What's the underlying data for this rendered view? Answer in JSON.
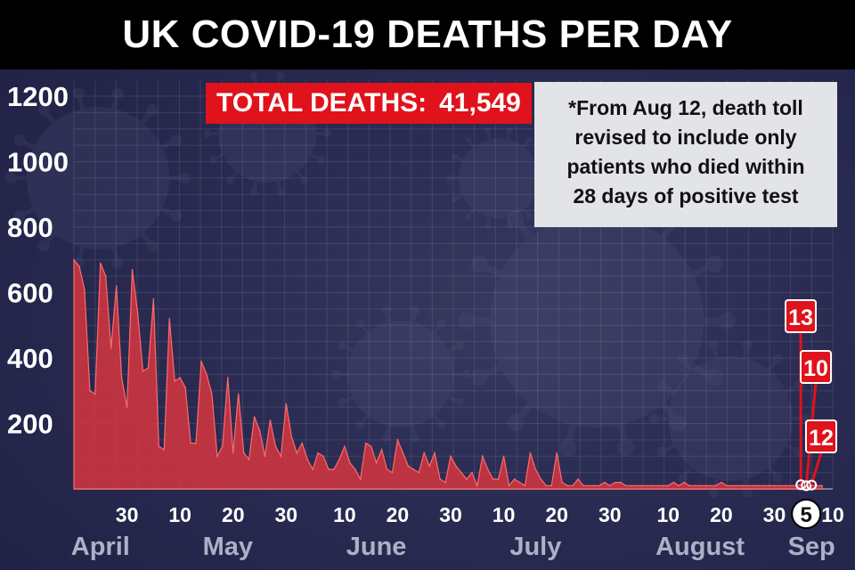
{
  "title": "UK COVID-19 DEATHS PER DAY",
  "total_label": "TOTAL DEATHS:",
  "total_value": "41,549",
  "note_lines": [
    "*From Aug 12, death toll",
    "revised to include only",
    "patients who died within",
    "28 days of positive test"
  ],
  "colors": {
    "area_fill": "#d6353f",
    "area_stroke": "#ff6b6b",
    "callout": "#e0121b",
    "background": "#2a2b52",
    "title_bar": "#000000",
    "note_box": "#e3e4e8"
  },
  "chart_data": {
    "type": "area",
    "title": "UK COVID-19 DEATHS PER DAY",
    "xlabel": "",
    "ylabel": "",
    "ylim": [
      0,
      1200
    ],
    "y_ticks": [
      200,
      400,
      600,
      800,
      1000,
      1200
    ],
    "grid": true,
    "x_start": "2020-04-20",
    "x_day_ticks": [
      {
        "date": "2020-04-30",
        "label": "30"
      },
      {
        "date": "2020-05-10",
        "label": "10"
      },
      {
        "date": "2020-05-20",
        "label": "20"
      },
      {
        "date": "2020-05-30",
        "label": "30"
      },
      {
        "date": "2020-06-10",
        "label": "10"
      },
      {
        "date": "2020-06-20",
        "label": "20"
      },
      {
        "date": "2020-06-30",
        "label": "30"
      },
      {
        "date": "2020-07-10",
        "label": "10"
      },
      {
        "date": "2020-07-20",
        "label": "20"
      },
      {
        "date": "2020-07-30",
        "label": "30"
      },
      {
        "date": "2020-08-10",
        "label": "10"
      },
      {
        "date": "2020-08-20",
        "label": "20"
      },
      {
        "date": "2020-08-30",
        "label": "30"
      },
      {
        "date": "2020-09-05",
        "label": "5",
        "highlight": true
      },
      {
        "date": "2020-09-10",
        "label": "10"
      }
    ],
    "x_month_labels": [
      {
        "date": "2020-04-25",
        "label": "April"
      },
      {
        "date": "2020-05-19",
        "label": "May"
      },
      {
        "date": "2020-06-16",
        "label": "June"
      },
      {
        "date": "2020-07-16",
        "label": "July"
      },
      {
        "date": "2020-08-16",
        "label": "August"
      },
      {
        "date": "2020-09-06",
        "label": "Sep"
      }
    ],
    "series": [
      {
        "dates": [
          "2020-04-20",
          "2020-04-21",
          "2020-04-22",
          "2020-04-23",
          "2020-04-24",
          "2020-04-25",
          "2020-04-26",
          "2020-04-27",
          "2020-04-28",
          "2020-04-29",
          "2020-04-30",
          "2020-05-01",
          "2020-05-02",
          "2020-05-03",
          "2020-05-04",
          "2020-05-05",
          "2020-05-06",
          "2020-05-07",
          "2020-05-08",
          "2020-05-09",
          "2020-05-10",
          "2020-05-11",
          "2020-05-12",
          "2020-05-13",
          "2020-05-14",
          "2020-05-15",
          "2020-05-16",
          "2020-05-17",
          "2020-05-18",
          "2020-05-19",
          "2020-05-20",
          "2020-05-21",
          "2020-05-22",
          "2020-05-23",
          "2020-05-24",
          "2020-05-25",
          "2020-05-26",
          "2020-05-27",
          "2020-05-28",
          "2020-05-29",
          "2020-05-30",
          "2020-05-31",
          "2020-06-01",
          "2020-06-02",
          "2020-06-03",
          "2020-06-04",
          "2020-06-05",
          "2020-06-06",
          "2020-06-07",
          "2020-06-08",
          "2020-06-09",
          "2020-06-10",
          "2020-06-11",
          "2020-06-12",
          "2020-06-13",
          "2020-06-14",
          "2020-06-15",
          "2020-06-16",
          "2020-06-17",
          "2020-06-18",
          "2020-06-19",
          "2020-06-20",
          "2020-06-21",
          "2020-06-22",
          "2020-06-23",
          "2020-06-24",
          "2020-06-25",
          "2020-06-26",
          "2020-06-27",
          "2020-06-28",
          "2020-06-29",
          "2020-06-30",
          "2020-07-01",
          "2020-07-02",
          "2020-07-03",
          "2020-07-04",
          "2020-07-05",
          "2020-07-06",
          "2020-07-07",
          "2020-07-08",
          "2020-07-09",
          "2020-07-10",
          "2020-07-11",
          "2020-07-12",
          "2020-07-13",
          "2020-07-14",
          "2020-07-15",
          "2020-07-16",
          "2020-07-17",
          "2020-07-18",
          "2020-07-19",
          "2020-07-20",
          "2020-07-21",
          "2020-07-22",
          "2020-07-23",
          "2020-07-24",
          "2020-07-25",
          "2020-07-26",
          "2020-07-27",
          "2020-07-28",
          "2020-07-29",
          "2020-07-30",
          "2020-07-31",
          "2020-08-01",
          "2020-08-02",
          "2020-08-03",
          "2020-08-04",
          "2020-08-05",
          "2020-08-06",
          "2020-08-07",
          "2020-08-08",
          "2020-08-09",
          "2020-08-10",
          "2020-08-11",
          "2020-08-12",
          "2020-08-13",
          "2020-08-14",
          "2020-08-15",
          "2020-08-16",
          "2020-08-17",
          "2020-08-18",
          "2020-08-19",
          "2020-08-20",
          "2020-08-21",
          "2020-08-22",
          "2020-08-23",
          "2020-08-24",
          "2020-08-25",
          "2020-08-26",
          "2020-08-27",
          "2020-08-28",
          "2020-08-29",
          "2020-08-30",
          "2020-08-31",
          "2020-09-01",
          "2020-09-02",
          "2020-09-03",
          "2020-09-04",
          "2020-09-05",
          "2020-09-06",
          "2020-09-07",
          "2020-09-08"
        ],
        "values": [
          700,
          680,
          610,
          300,
          290,
          690,
          650,
          430,
          620,
          340,
          250,
          670,
          540,
          360,
          370,
          580,
          130,
          120,
          520,
          330,
          340,
          310,
          140,
          140,
          390,
          350,
          290,
          100,
          130,
          340,
          110,
          290,
          110,
          90,
          220,
          180,
          100,
          210,
          130,
          100,
          260,
          160,
          110,
          140,
          90,
          60,
          110,
          100,
          60,
          60,
          90,
          130,
          80,
          60,
          30,
          140,
          130,
          80,
          120,
          60,
          50,
          150,
          110,
          70,
          60,
          50,
          110,
          70,
          110,
          30,
          20,
          100,
          70,
          50,
          30,
          50,
          10,
          100,
          60,
          30,
          30,
          100,
          10,
          30,
          20,
          10,
          110,
          60,
          30,
          10,
          10,
          110,
          20,
          10,
          10,
          30,
          10,
          10,
          10,
          10,
          20,
          10,
          20,
          20,
          10,
          10,
          10,
          10,
          10,
          10,
          10,
          10,
          10,
          20,
          10,
          20,
          10,
          10,
          10,
          10,
          10,
          10,
          20,
          10,
          10,
          10,
          10,
          10,
          10,
          10,
          10,
          10,
          10,
          10,
          10,
          10,
          10,
          13,
          10,
          12,
          10,
          10
        ]
      }
    ],
    "callouts": [
      {
        "date": "2020-09-04",
        "value": 13,
        "label": "13"
      },
      {
        "date": "2020-09-05",
        "value": 10,
        "label": "10"
      },
      {
        "date": "2020-09-06",
        "value": 12,
        "label": "12"
      }
    ]
  }
}
